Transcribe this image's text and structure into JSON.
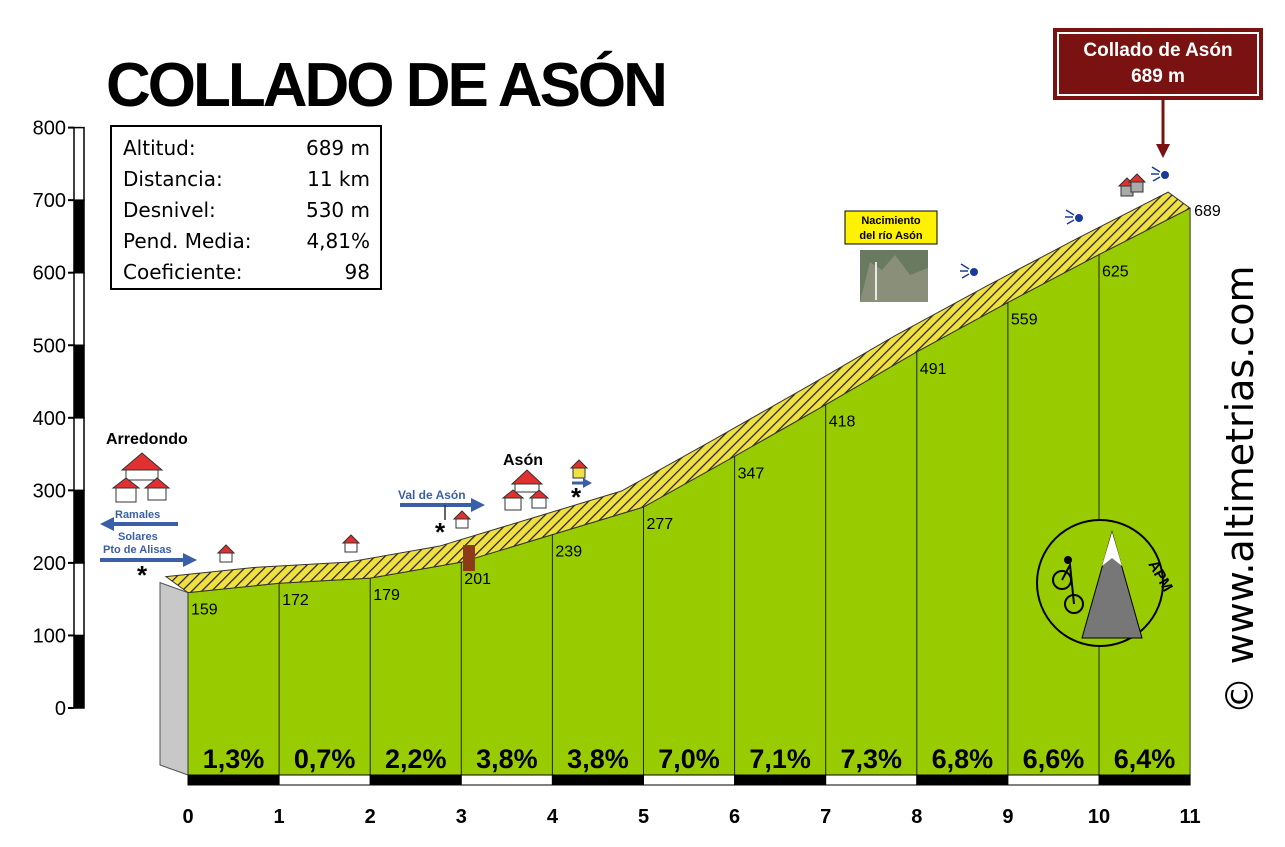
{
  "title": "COLLADO DE ASÓN",
  "info": [
    {
      "label": "Altitud:",
      "value": "689 m"
    },
    {
      "label": "Distancia:",
      "value": "11 km"
    },
    {
      "label": "Desnivel:",
      "value": "530 m"
    },
    {
      "label": "Pend. Media:",
      "value": "4,81%"
    },
    {
      "label": "Coeficiente:",
      "value": "98"
    }
  ],
  "summit_box": {
    "line1": "Collado de Asón",
    "line2": "689 m"
  },
  "watermark": "© www.altimetrias.com",
  "labels": {
    "arredondo": "Arredondo",
    "ason": "Asón",
    "ramales": "Ramales",
    "solares": "Solares",
    "pto_alisas": "Pto de Alisas",
    "val_de_ason": "Val de Asón",
    "nacimiento_1": "Nacimiento",
    "nacimiento_2": "del río Asón"
  },
  "logo": "APM",
  "colors": {
    "fill": "#99cc00",
    "road": "#f0e040",
    "summit_box": "#7a1212",
    "arrow": "#3a5fa8",
    "house_roof": "#e03030"
  },
  "chart_data": {
    "type": "area",
    "x": [
      0,
      1,
      2,
      3,
      4,
      5,
      6,
      7,
      8,
      9,
      10,
      11
    ],
    "altitudes": [
      159,
      172,
      179,
      201,
      239,
      277,
      347,
      418,
      491,
      559,
      625,
      689
    ],
    "altitude_labels": [
      "159",
      "172",
      "179",
      "201",
      "239",
      "277",
      "347",
      "418",
      "491",
      "559",
      "625",
      "689"
    ],
    "gradients": [
      "1,3%",
      "0,7%",
      "2,2%",
      "3,8%",
      "3,8%",
      "7,0%",
      "7,1%",
      "7,3%",
      "6,8%",
      "6,6%",
      "6,4%"
    ],
    "x_ticks": [
      "0",
      "1",
      "2",
      "3",
      "4",
      "5",
      "6",
      "7",
      "8",
      "9",
      "10",
      "11"
    ],
    "y_ticks": [
      "0",
      "100",
      "200",
      "300",
      "400",
      "500",
      "600",
      "700",
      "800"
    ],
    "ylim": [
      0,
      800
    ],
    "xlim": [
      0,
      11
    ]
  }
}
